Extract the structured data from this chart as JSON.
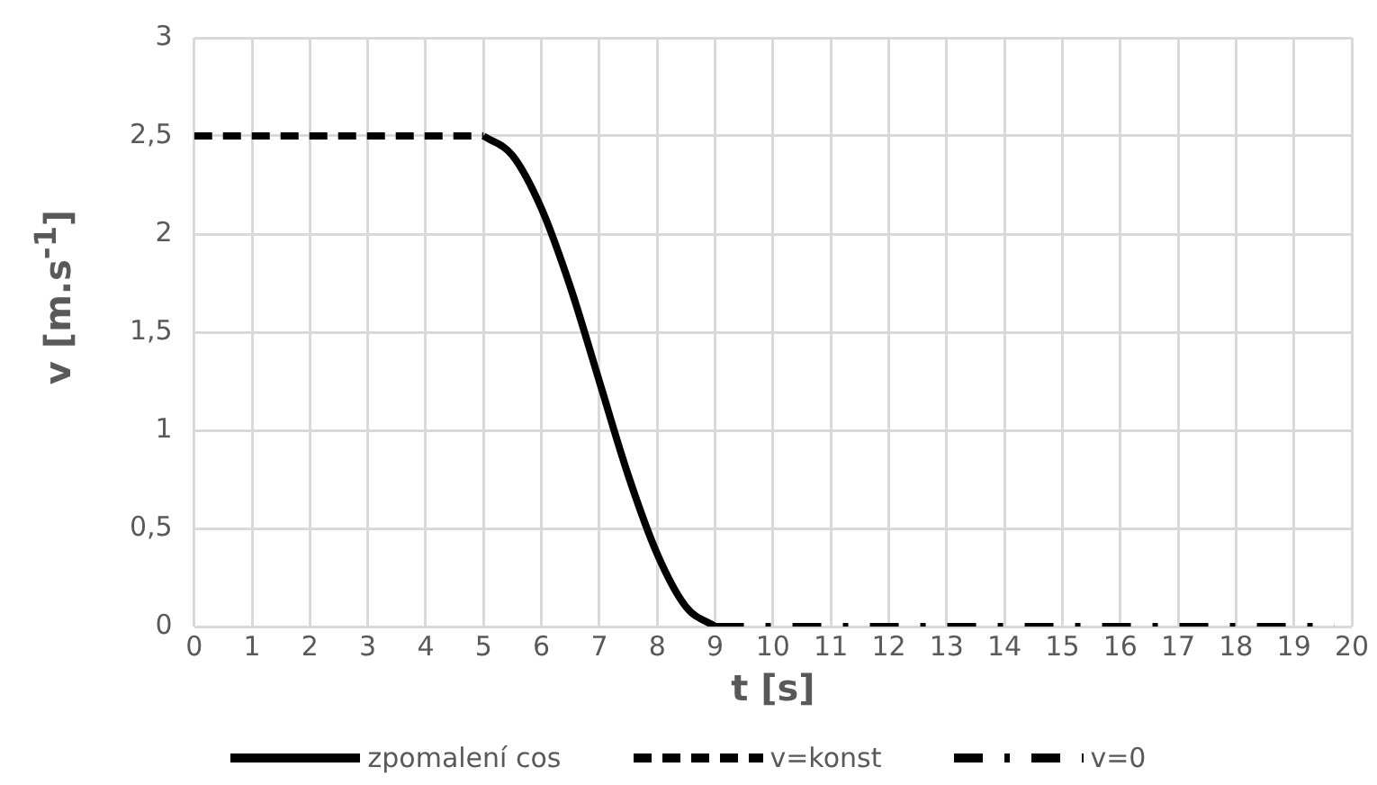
{
  "chart_data": {
    "type": "line",
    "xlabel": "t [s]",
    "ylabel": "v [m.s$^{-1}$]",
    "xlim": [
      0,
      20
    ],
    "xticks": [
      0,
      1,
      2,
      3,
      4,
      5,
      6,
      7,
      8,
      9,
      10,
      11,
      12,
      13,
      14,
      15,
      16,
      17,
      18,
      19,
      20
    ],
    "ylim": [
      0,
      3
    ],
    "yticks": [
      0,
      {
        "value": 0.5,
        "label": "0,5"
      },
      1,
      {
        "value": 1.5,
        "label": "1,5"
      },
      2,
      {
        "value": 2.5,
        "label": "2,5"
      },
      3
    ],
    "grid": true,
    "legend": "bottom",
    "marker": "none",
    "series": [
      {
        "name": "zpomalení cos",
        "color": "#000000",
        "line_style": "solid",
        "x": [
          5,
          5.5,
          6,
          6.5,
          7,
          7.5,
          8,
          8.5,
          9
        ],
        "values": [
          2.5,
          2.4,
          2.13,
          1.73,
          1.25,
          0.77,
          0.37,
          0.1,
          0
        ]
      },
      {
        "name": "v=konst",
        "color": "#000000",
        "line_style": "dashed",
        "x": [
          0,
          5
        ],
        "values": [
          2.5,
          2.5
        ]
      },
      {
        "name": "v=0",
        "color": "#000000",
        "line_style": "dashdot",
        "x": [
          9,
          19.7
        ],
        "values": [
          0,
          0
        ]
      }
    ]
  }
}
